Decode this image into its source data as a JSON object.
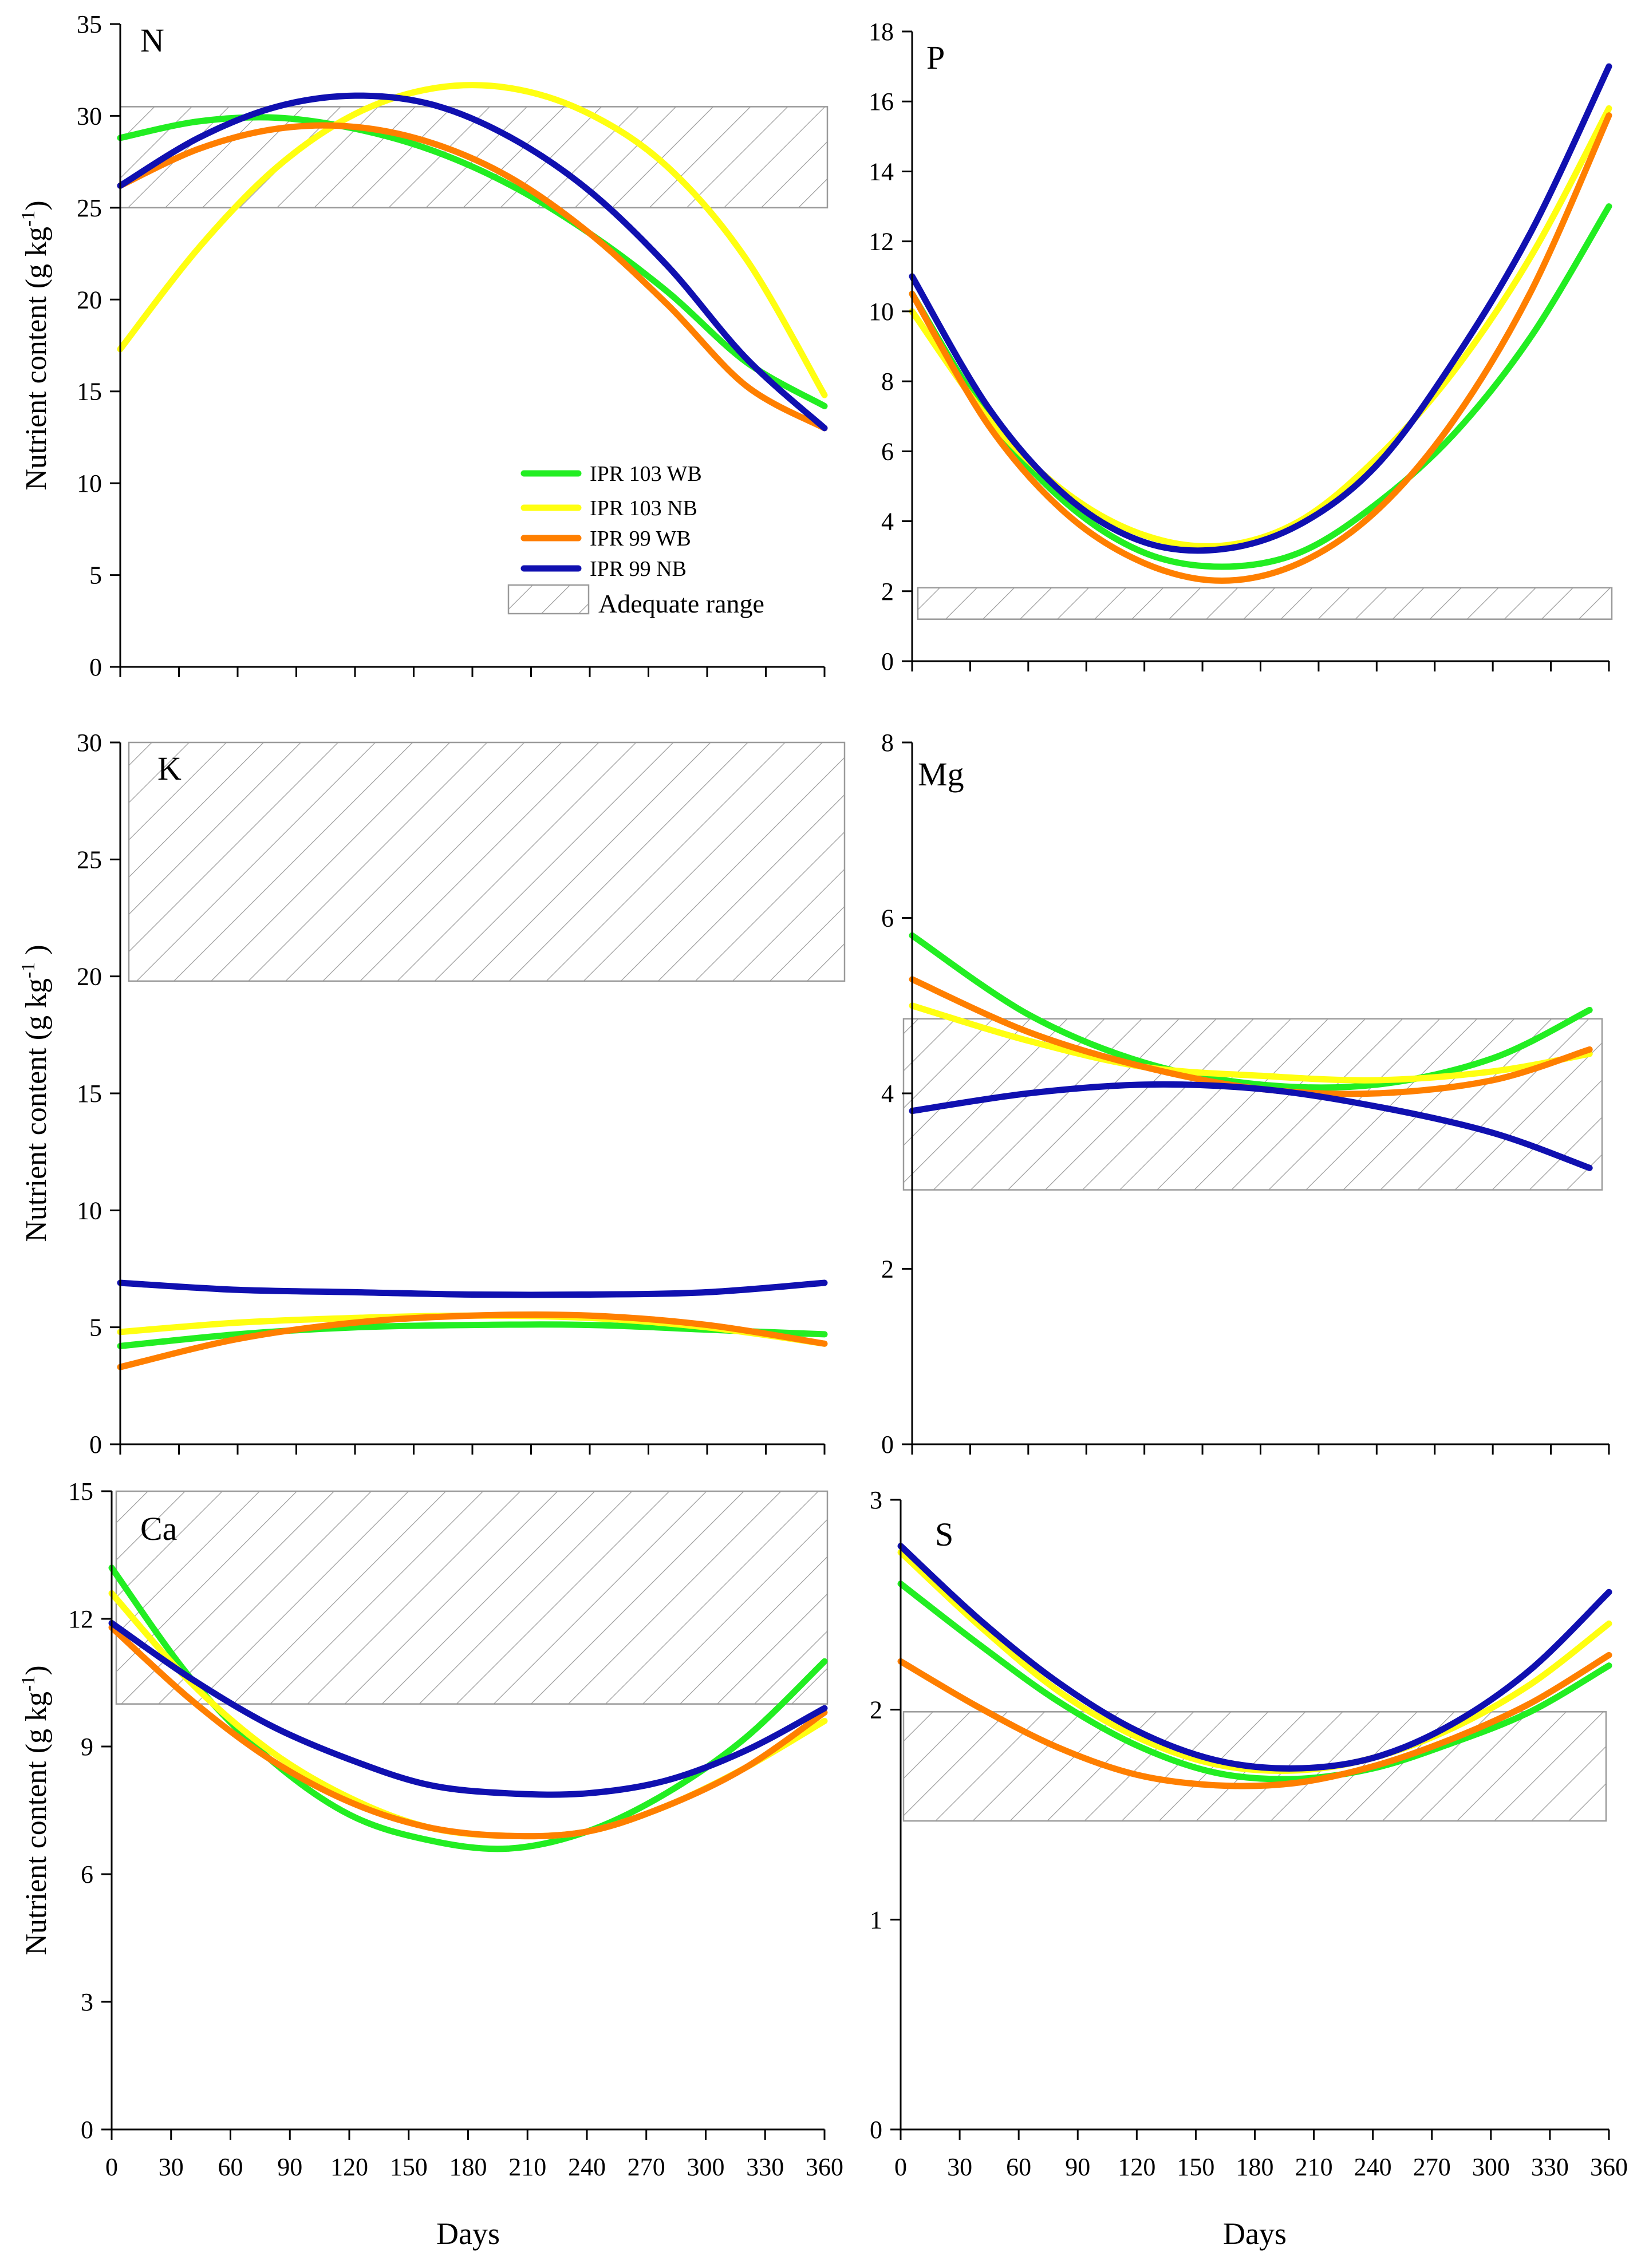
{
  "figure": {
    "colors": {
      "IPR 103 WB": "#22ee22",
      "IPR 103 NB": "#ffff11",
      "IPR 99 WB": "#ff7f00",
      "IPR 99 NB": "#1010b0",
      "range_hatch": "#9a9a9a",
      "axis": "#000000"
    },
    "legend": {
      "entries": [
        "IPR 103 WB",
        "IPR 103 NB",
        "IPR 99 WB",
        "IPR 99 NB"
      ],
      "range_label": "Adequate range",
      "placement": "inside N panel, lower-right"
    }
  },
  "chart_data": [
    {
      "panel": "N",
      "type": "line",
      "title": "N",
      "ylabel": "Nutrient content (g kg-1)",
      "ylabel_main": "Nutrient content (g kg",
      "ylabel_sup": "-1",
      "ylabel_close": ")",
      "xlabel": "",
      "xlim": [
        0,
        360
      ],
      "ylim": [
        0,
        35
      ],
      "yticks": [
        0,
        5,
        10,
        15,
        20,
        25,
        30,
        35
      ],
      "xticks": [],
      "adequate_range": [
        25,
        30.5
      ],
      "x": [
        0,
        40,
        80,
        120,
        160,
        200,
        240,
        280,
        320,
        360
      ],
      "series": [
        {
          "name": "IPR 103 WB",
          "values": [
            28.8,
            29.7,
            29.9,
            29.3,
            28.1,
            26.2,
            23.6,
            20.4,
            16.6,
            14.2
          ]
        },
        {
          "name": "IPR 103 NB",
          "values": [
            17.3,
            22.8,
            27.2,
            30.1,
            31.5,
            31.5,
            30.1,
            27.2,
            22.2,
            14.8
          ]
        },
        {
          "name": "IPR 99 WB",
          "values": [
            26.2,
            28.2,
            29.3,
            29.4,
            28.5,
            26.6,
            23.6,
            19.7,
            15.3,
            13.0
          ]
        },
        {
          "name": "IPR 99 NB",
          "values": [
            26.2,
            28.8,
            30.5,
            31.1,
            30.6,
            28.8,
            25.9,
            21.8,
            16.8,
            13.0
          ]
        }
      ]
    },
    {
      "panel": "P",
      "type": "line",
      "title": "P",
      "ylabel": "",
      "xlabel": "",
      "xlim": [
        0,
        360
      ],
      "ylim": [
        0,
        18
      ],
      "yticks": [
        0,
        2,
        4,
        6,
        8,
        10,
        12,
        14,
        16,
        18
      ],
      "xticks": [],
      "adequate_range": [
        1.2,
        2.1
      ],
      "x": [
        0,
        40,
        80,
        120,
        160,
        200,
        240,
        280,
        320,
        360
      ],
      "series": [
        {
          "name": "IPR 103 WB",
          "values": [
            10.5,
            6.9,
            4.5,
            3.1,
            2.7,
            3.1,
            4.5,
            6.5,
            9.3,
            13.0
          ]
        },
        {
          "name": "IPR 103 NB",
          "values": [
            10.0,
            6.9,
            4.8,
            3.6,
            3.3,
            4.0,
            5.8,
            8.3,
            11.6,
            15.8
          ]
        },
        {
          "name": "IPR 99 WB",
          "values": [
            10.5,
            6.7,
            4.2,
            2.8,
            2.3,
            2.8,
            4.3,
            6.9,
            10.6,
            15.6
          ]
        },
        {
          "name": "IPR 99 NB",
          "values": [
            11.0,
            7.2,
            4.7,
            3.4,
            3.2,
            3.9,
            5.6,
            8.6,
            12.3,
            17.0
          ]
        }
      ]
    },
    {
      "panel": "K",
      "type": "line",
      "title": "K",
      "ylabel": "Nutrient content (g kg-1)",
      "ylabel_main": "Nutrient content (g kg",
      "ylabel_sup": "-1",
      "ylabel_close": " )",
      "xlabel": "",
      "xlim": [
        0,
        360
      ],
      "ylim": [
        0,
        30
      ],
      "yticks": [
        0,
        5,
        10,
        15,
        20,
        25,
        30
      ],
      "xticks": [],
      "adequate_range": [
        19.8,
        30
      ],
      "x": [
        0,
        60,
        120,
        180,
        240,
        300,
        360
      ],
      "series": [
        {
          "name": "IPR 103 WB",
          "values": [
            4.2,
            4.7,
            5.0,
            5.1,
            5.1,
            4.9,
            4.7
          ]
        },
        {
          "name": "IPR 103 NB",
          "values": [
            4.8,
            5.2,
            5.4,
            5.5,
            5.4,
            5.0,
            4.3
          ]
        },
        {
          "name": "IPR 99 WB",
          "values": [
            3.3,
            4.5,
            5.2,
            5.5,
            5.5,
            5.1,
            4.3
          ]
        },
        {
          "name": "IPR 99 NB",
          "values": [
            6.9,
            6.6,
            6.5,
            6.4,
            6.4,
            6.5,
            6.9
          ]
        }
      ]
    },
    {
      "panel": "Mg",
      "type": "line",
      "title": "Mg",
      "ylabel": "",
      "xlabel": "",
      "xlim": [
        0,
        360
      ],
      "ylim": [
        0,
        8
      ],
      "yticks": [
        0,
        2,
        4,
        6,
        8
      ],
      "xticks": [],
      "adequate_range": [
        2.9,
        4.85
      ],
      "x": [
        0,
        60,
        120,
        180,
        240,
        300,
        350
      ],
      "series": [
        {
          "name": "IPR 103 WB",
          "values": [
            5.8,
            4.9,
            4.35,
            4.1,
            4.1,
            4.4,
            4.95
          ]
        },
        {
          "name": "IPR 103 NB",
          "values": [
            5.0,
            4.6,
            4.3,
            4.2,
            4.15,
            4.25,
            4.45
          ]
        },
        {
          "name": "IPR 99 WB",
          "values": [
            5.3,
            4.7,
            4.3,
            4.05,
            4.0,
            4.15,
            4.5
          ]
        },
        {
          "name": "IPR 99 NB",
          "values": [
            3.8,
            4.0,
            4.1,
            4.05,
            3.85,
            3.55,
            3.15
          ]
        }
      ]
    },
    {
      "panel": "Ca",
      "type": "line",
      "title": "Ca",
      "ylabel": "Nutrient content (g kg-1)",
      "ylabel_main": "Nutrient content (g kg",
      "ylabel_sup": "-1",
      "ylabel_close": ")",
      "xlabel": "Days",
      "xlim": [
        0,
        360
      ],
      "ylim": [
        0,
        15
      ],
      "yticks": [
        0,
        3,
        6,
        9,
        12,
        15
      ],
      "xticks": [
        0,
        30,
        60,
        90,
        120,
        150,
        180,
        210,
        240,
        270,
        300,
        330,
        360
      ],
      "adequate_range": [
        10,
        15
      ],
      "x": [
        0,
        40,
        80,
        120,
        160,
        200,
        240,
        280,
        320,
        360
      ],
      "series": [
        {
          "name": "IPR 103 WB",
          "values": [
            13.2,
            10.6,
            8.7,
            7.4,
            6.8,
            6.6,
            7.0,
            7.9,
            9.2,
            11.0
          ]
        },
        {
          "name": "IPR 103 NB",
          "values": [
            12.6,
            10.5,
            8.9,
            7.8,
            7.1,
            6.9,
            7.0,
            7.6,
            8.5,
            9.6
          ]
        },
        {
          "name": "IPR 99 WB",
          "values": [
            11.8,
            10.1,
            8.7,
            7.7,
            7.1,
            6.9,
            7.0,
            7.6,
            8.5,
            9.8
          ]
        },
        {
          "name": "IPR 99 NB",
          "values": [
            11.9,
            10.6,
            9.5,
            8.7,
            8.1,
            7.9,
            7.9,
            8.2,
            8.9,
            9.9
          ]
        }
      ]
    },
    {
      "panel": "S",
      "type": "line",
      "title": "S",
      "ylabel": "",
      "xlabel": "Days",
      "xlim": [
        0,
        360
      ],
      "ylim": [
        0,
        3
      ],
      "yticks": [
        0,
        1,
        2,
        3
      ],
      "xticks": [
        0,
        30,
        60,
        90,
        120,
        150,
        180,
        210,
        240,
        270,
        300,
        330,
        360
      ],
      "adequate_range": [
        1.47,
        1.99
      ],
      "x": [
        0,
        40,
        80,
        120,
        160,
        200,
        240,
        280,
        320,
        360
      ],
      "series": [
        {
          "name": "IPR 103 WB",
          "values": [
            2.6,
            2.31,
            2.04,
            1.83,
            1.7,
            1.67,
            1.72,
            1.84,
            1.99,
            2.21
          ]
        },
        {
          "name": "IPR 103 NB",
          "values": [
            2.75,
            2.4,
            2.09,
            1.87,
            1.74,
            1.71,
            1.77,
            1.91,
            2.12,
            2.41
          ]
        },
        {
          "name": "IPR 99 WB",
          "values": [
            2.23,
            2.01,
            1.82,
            1.69,
            1.64,
            1.65,
            1.73,
            1.86,
            2.03,
            2.26
          ]
        },
        {
          "name": "IPR 99 NB",
          "values": [
            2.78,
            2.43,
            2.13,
            1.9,
            1.76,
            1.72,
            1.77,
            1.93,
            2.19,
            2.56
          ]
        }
      ]
    }
  ]
}
